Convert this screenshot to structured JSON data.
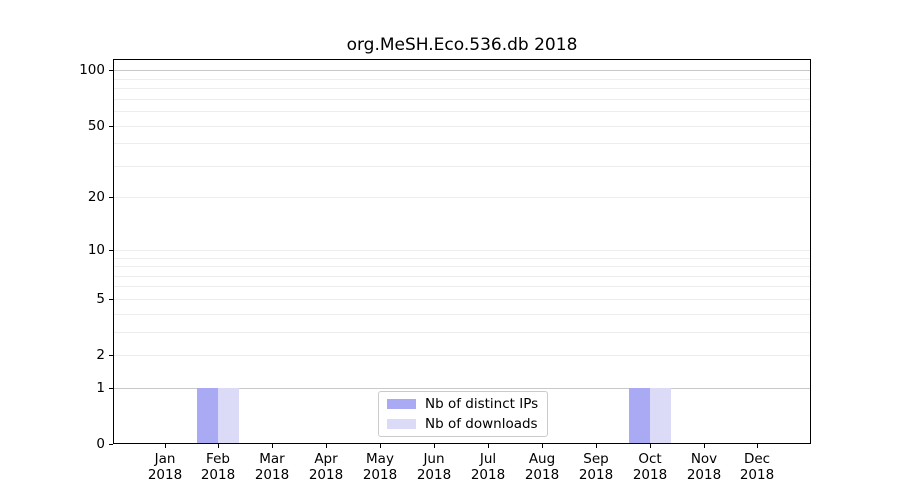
{
  "chart_data": {
    "type": "bar",
    "title": "org.MeSH.Eco.536.db 2018",
    "categories": [
      "Jan",
      "Feb",
      "Mar",
      "Apr",
      "May",
      "Jun",
      "Jul",
      "Aug",
      "Sep",
      "Oct",
      "Nov",
      "Dec"
    ],
    "category_year": "2018",
    "series": [
      {
        "name": "Nb of distinct IPs",
        "color": "#aaaaf4",
        "values": [
          0,
          1,
          0,
          0,
          0,
          0,
          0,
          0,
          0,
          1,
          0,
          0
        ]
      },
      {
        "name": "Nb of downloads",
        "color": "#dbdbf7",
        "values": [
          0,
          1,
          0,
          0,
          0,
          0,
          0,
          0,
          0,
          1,
          0,
          0
        ]
      }
    ],
    "yscale": "log1p",
    "ylim": [
      0,
      115
    ],
    "y_major_ticks": [
      0,
      1,
      2,
      5,
      10,
      20,
      50,
      100
    ],
    "y_gridlines_faint": [
      2,
      3,
      4,
      5,
      6,
      7,
      8,
      9,
      10,
      20,
      30,
      40,
      50,
      60,
      70,
      80,
      90
    ],
    "y_gridlines_emphasis": [
      1,
      100
    ],
    "grid": "horizontal",
    "legend_position": "lower-center",
    "colors": {
      "faint_grid": "#ededed",
      "emphasis_grid": "#c8c8c8",
      "axis": "#000000",
      "bar_distinct_ips": "#aaaaf4",
      "bar_downloads": "#dbdbf7",
      "legend_border": "#cbcbcb"
    }
  }
}
